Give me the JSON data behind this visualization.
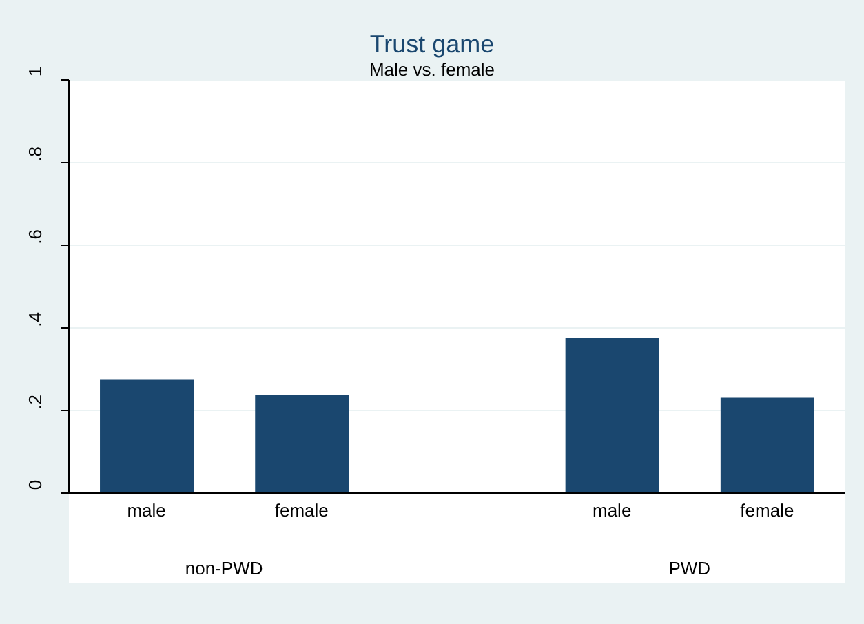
{
  "chart_data": {
    "type": "bar",
    "title": "Trust game",
    "subtitle": "Male vs. female",
    "categories": [
      "male",
      "female",
      null,
      "male",
      "female"
    ],
    "values": [
      0.274,
      0.237,
      null,
      0.375,
      0.231
    ],
    "color": "#1a476f",
    "ylim": [
      0,
      1
    ],
    "yticks": [
      0,
      {
        "value": 0.2,
        "label": ".2"
      },
      {
        "value": 0.4,
        "label": ".4"
      },
      {
        "value": 0.6,
        "label": ".6"
      },
      {
        "value": 0.8,
        "label": ".8"
      },
      1
    ],
    "grid": "y",
    "annotations": [
      "non-PWD",
      "PWD"
    ]
  }
}
